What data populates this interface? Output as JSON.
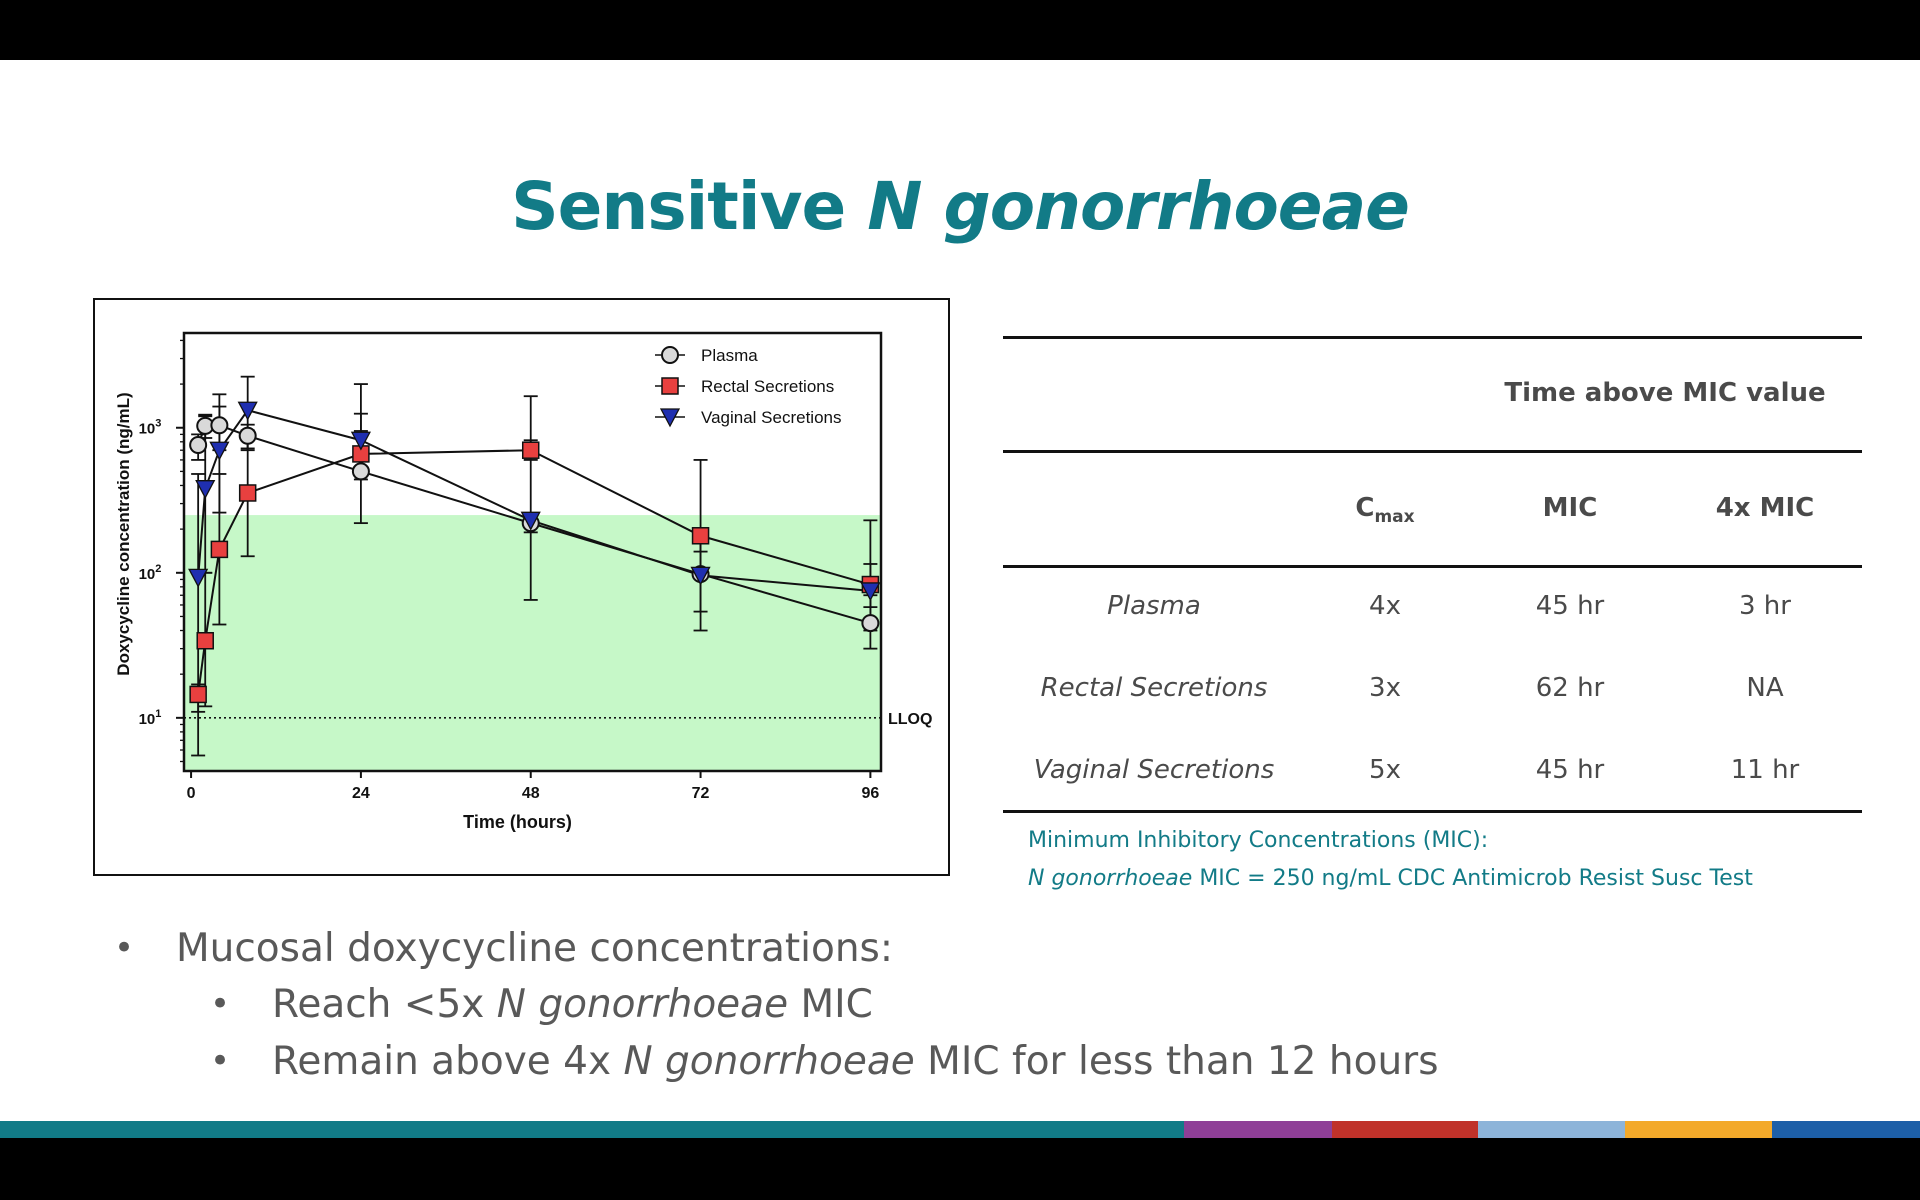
{
  "slide": {
    "title_plain": "Sensitive ",
    "title_italic": "N gonorrhoeae"
  },
  "chart_data": {
    "type": "line",
    "xlabel": "Time (hours)",
    "ylabel": "Doxycycline concentration (ng/mL)",
    "x_ticks": [
      "0",
      "24",
      "48",
      "72",
      "96"
    ],
    "y_ticks": [
      {
        "base": "10",
        "exp": "1",
        "value": 10
      },
      {
        "base": "10",
        "exp": "2",
        "value": 100
      },
      {
        "base": "10",
        "exp": "3",
        "value": 1000
      }
    ],
    "y_scale": "log",
    "xlim": [
      -1,
      97.5
    ],
    "ylim": [
      4.3,
      4500
    ],
    "series": [
      {
        "name": "Plasma",
        "marker": "circle",
        "color": "#d9d9d9",
        "points": [
          {
            "x": 1,
            "y": 760,
            "lo": 600,
            "hi": 900
          },
          {
            "x": 2,
            "y": 1030,
            "lo": 850,
            "hi": 1230
          },
          {
            "x": 4,
            "y": 1040,
            "lo": 700,
            "hi": 1700
          },
          {
            "x": 8,
            "y": 880,
            "lo": 720,
            "hi": 1050
          },
          {
            "x": 24,
            "y": 500,
            "lo": 220,
            "hi": 1250
          },
          {
            "x": 48,
            "y": 220,
            "lo": 190,
            "hi": 255
          },
          {
            "x": 72,
            "y": 98,
            "lo": 54,
            "hi": 200
          },
          {
            "x": 96,
            "y": 45,
            "lo": 30,
            "hi": 70
          }
        ]
      },
      {
        "name": "Rectal Secretions",
        "marker": "square",
        "color": "#e8403f",
        "points": [
          {
            "x": 1,
            "y": 14.5,
            "lo": 11,
            "hi": 17
          },
          {
            "x": 2,
            "y": 34,
            "lo": 12,
            "hi": 100
          },
          {
            "x": 4,
            "y": 145,
            "lo": 44,
            "hi": 480
          },
          {
            "x": 8,
            "y": 355,
            "lo": 130,
            "hi": 960
          },
          {
            "x": 24,
            "y": 660,
            "lo": 440,
            "hi": 950
          },
          {
            "x": 48,
            "y": 700,
            "lo": 600,
            "hi": 820
          },
          {
            "x": 72,
            "y": 180,
            "lo": 140,
            "hi": 600
          },
          {
            "x": 96,
            "y": 83,
            "lo": 58,
            "hi": 115
          }
        ]
      },
      {
        "name": "Vaginal Secretions",
        "marker": "triangle-down",
        "color": "#1f2fb0",
        "points": [
          {
            "x": 1,
            "y": 93,
            "lo": 5.5,
            "hi": 480
          },
          {
            "x": 2,
            "y": 380,
            "lo": 100,
            "hi": 1200
          },
          {
            "x": 4,
            "y": 700,
            "lo": 260,
            "hi": 1400
          },
          {
            "x": 8,
            "y": 1320,
            "lo": 700,
            "hi": 2250
          },
          {
            "x": 24,
            "y": 820,
            "lo": 620,
            "hi": 2000
          },
          {
            "x": 48,
            "y": 230,
            "lo": 65,
            "hi": 1650
          },
          {
            "x": 72,
            "y": 96,
            "lo": 40,
            "hi": 200
          },
          {
            "x": 96,
            "y": 75,
            "lo": 40,
            "hi": 230
          }
        ]
      }
    ],
    "shaded_region": {
      "from": 4.3,
      "to": 250,
      "color": "#c6f8c8"
    },
    "reference_line": {
      "y": 10,
      "label": "LLOQ",
      "style": "dotted"
    },
    "legend_position": "top-right",
    "grid": false
  },
  "table": {
    "group_header": "Time above MIC value",
    "columns": [
      {
        "text": "C",
        "sub": "max"
      },
      {
        "text": "MIC",
        "sub": ""
      },
      {
        "text": "4x MIC",
        "sub": ""
      }
    ],
    "rows": [
      {
        "label": "Plasma",
        "values": [
          "4x",
          "45 hr",
          "3 hr"
        ]
      },
      {
        "label": "Rectal Secretions",
        "values": [
          "3x",
          "62 hr",
          "NA"
        ]
      },
      {
        "label": "Vaginal Secretions",
        "values": [
          "5x",
          "45 hr",
          "11 hr"
        ]
      }
    ]
  },
  "mic_note": {
    "line1": "Minimum Inhibitory Concentrations (MIC):",
    "line2_italic": "N gonorrhoeae",
    "line2_rest": " MIC = 250 ng/mL CDC Antimicrob Resist Susc Test"
  },
  "bullets": {
    "main": "Mucosal doxycycline concentrations:",
    "sub1_pre": "Reach <5x ",
    "sub1_italic": "N gonorrhoeae",
    "sub1_post": " MIC",
    "sub2_pre": "Remain above 4x ",
    "sub2_italic": "N gonorrhoeae",
    "sub2_post": " MIC for less than 12 hours"
  },
  "footer_colors": [
    "#127b87",
    "#8f3f97",
    "#c0322a",
    "#8db4d9",
    "#f3a92a",
    "#1d5fa8"
  ]
}
